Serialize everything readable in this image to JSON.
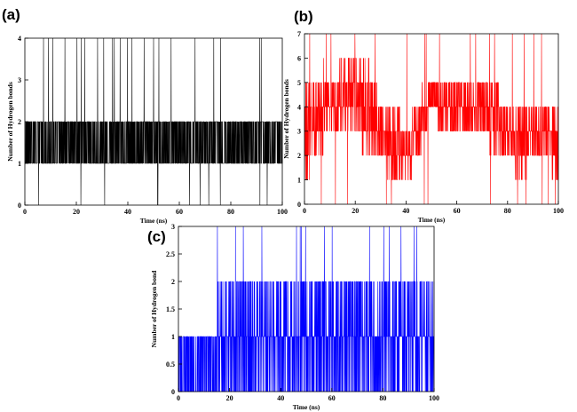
{
  "chart_data": [
    {
      "type": "line",
      "panel": "(a)",
      "xlabel": "Time (ns)",
      "ylabel": "Number of Hydrogen bonds",
      "xlim": [
        0,
        100
      ],
      "ylim": [
        0,
        4
      ],
      "xticks": [
        0,
        20,
        40,
        60,
        80,
        100
      ],
      "yticks": [
        0,
        1,
        2,
        3,
        4
      ],
      "color": "#000000",
      "grid": false,
      "series": [
        {
          "x": [
            0,
            10,
            20,
            30,
            40,
            50,
            60,
            70,
            80,
            90,
            100
          ],
          "y": [
            2,
            1,
            2,
            2,
            1,
            2,
            1,
            2,
            2,
            1,
            2
          ],
          "y_min": [
            1,
            1,
            1,
            1,
            1,
            1,
            1,
            1,
            1,
            1,
            1
          ],
          "y_max": [
            2,
            2,
            2,
            2,
            2,
            2,
            2,
            2,
            2,
            2,
            2
          ],
          "y_overall_range": [
            0,
            4
          ]
        }
      ]
    },
    {
      "type": "line",
      "panel": "(b)",
      "xlabel": "Time (ns)",
      "ylabel": "Number of Hydrogen bonds",
      "xlim": [
        0,
        100
      ],
      "ylim": [
        0,
        7
      ],
      "xticks": [
        0,
        20,
        40,
        60,
        80,
        100
      ],
      "yticks": [
        0,
        1,
        2,
        3,
        4,
        5,
        6,
        7
      ],
      "color": "#ff0000",
      "grid": false,
      "series": [
        {
          "x": [
            0,
            5,
            10,
            15,
            20,
            25,
            30,
            35,
            40,
            45,
            50,
            55,
            60,
            65,
            70,
            75,
            80,
            85,
            90,
            95,
            100
          ],
          "y": [
            3,
            3,
            4,
            4,
            4,
            4,
            2.5,
            2.5,
            2.5,
            2.5,
            4.5,
            4.5,
            4,
            4.5,
            4,
            4,
            3,
            3,
            3,
            3.5,
            3
          ],
          "y_min": [
            1,
            2,
            3,
            3,
            3,
            2,
            2,
            1,
            1,
            2,
            4,
            3,
            3,
            3,
            3,
            2,
            2,
            1,
            2,
            2,
            1
          ],
          "y_max": [
            5,
            5,
            5,
            6,
            6,
            6,
            4,
            4,
            3,
            4,
            5,
            5,
            5,
            5,
            5,
            5,
            4,
            4,
            4,
            4,
            4
          ],
          "y_overall_range": [
            0,
            7
          ]
        }
      ]
    },
    {
      "type": "line",
      "panel": "(c)",
      "xlabel": "Time (ns)",
      "ylabel": "Number of Hydrogen bond",
      "xlim": [
        0,
        100
      ],
      "ylim": [
        0,
        3
      ],
      "xticks": [
        0,
        20,
        40,
        60,
        80,
        100
      ],
      "yticks": [
        0,
        0.5,
        1,
        1.5,
        2,
        2.5,
        3
      ],
      "color": "#0000ff",
      "grid": false,
      "series": [
        {
          "x": [
            0,
            10,
            20,
            30,
            40,
            50,
            60,
            70,
            80,
            90,
            100
          ],
          "y": [
            1,
            0,
            1,
            1,
            1,
            2,
            1,
            2,
            1,
            1,
            1
          ],
          "y_min": [
            0,
            0,
            0,
            0,
            0,
            0,
            0,
            0,
            0,
            0,
            0
          ],
          "y_max": [
            1,
            1,
            2,
            2,
            2,
            2,
            2,
            2,
            2,
            2,
            2
          ],
          "y_overall_range": [
            0,
            3
          ]
        }
      ]
    }
  ]
}
